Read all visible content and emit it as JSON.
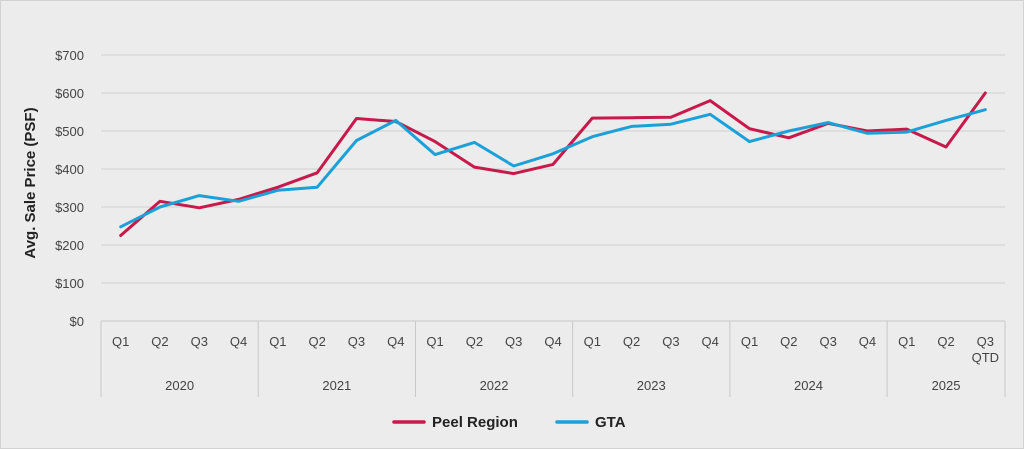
{
  "chart_data": {
    "type": "line",
    "ylabel": "Avg. Sale Price (PSF)",
    "ylim": [
      0,
      700
    ],
    "yticks": [
      0,
      100,
      200,
      300,
      400,
      500,
      600,
      700
    ],
    "yticklabels": [
      "$0",
      "$100",
      "$200",
      "$300",
      "$400",
      "$500",
      "$600",
      "$700"
    ],
    "grid": true,
    "legend_position": "bottom-center",
    "categories": [
      "2020 Q1",
      "2020 Q2",
      "2020 Q3",
      "2020 Q4",
      "2021 Q1",
      "2021 Q2",
      "2021 Q3",
      "2021 Q4",
      "2022 Q1",
      "2022 Q2",
      "2022 Q3",
      "2022 Q4",
      "2023 Q1",
      "2023 Q2",
      "2023 Q3",
      "2023 Q4",
      "2024 Q1",
      "2024 Q2",
      "2024 Q3",
      "2024 Q4",
      "2025 Q1",
      "2025 Q2",
      "2025 Q3 QTD"
    ],
    "quarter_labels": [
      "Q1",
      "Q2",
      "Q3",
      "Q4",
      "Q1",
      "Q2",
      "Q3",
      "Q4",
      "Q1",
      "Q2",
      "Q3",
      "Q4",
      "Q1",
      "Q2",
      "Q3",
      "Q4",
      "Q1",
      "Q2",
      "Q3",
      "Q4",
      "Q1",
      "Q2",
      "Q3"
    ],
    "quarter_sublabels": {
      "22": "QTD"
    },
    "years": [
      {
        "label": "2020",
        "count": 4
      },
      {
        "label": "2021",
        "count": 4
      },
      {
        "label": "2022",
        "count": 4
      },
      {
        "label": "2023",
        "count": 4
      },
      {
        "label": "2024",
        "count": 4
      },
      {
        "label": "2025",
        "count": 3
      }
    ],
    "series": [
      {
        "name": "Peel Region",
        "color": "#c8194b",
        "values": [
          225,
          315,
          298,
          320,
          352,
          390,
          533,
          525,
          472,
          405,
          388,
          412,
          534,
          535,
          536,
          580,
          506,
          482,
          520,
          500,
          505,
          458,
          600
        ]
      },
      {
        "name": "GTA",
        "color": "#1ba0d8",
        "values": [
          248,
          300,
          330,
          315,
          344,
          352,
          475,
          528,
          438,
          470,
          408,
          440,
          485,
          512,
          518,
          544,
          472,
          500,
          522,
          494,
          497,
          528,
          556
        ]
      }
    ]
  }
}
